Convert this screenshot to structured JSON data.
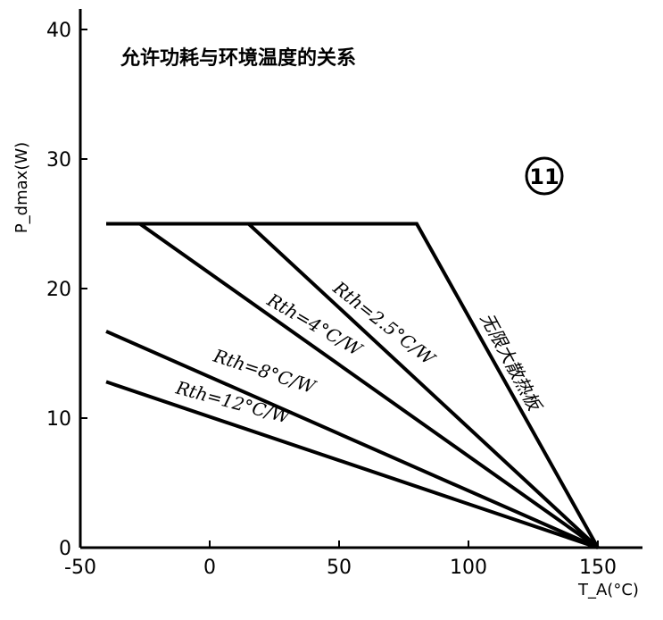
{
  "chart_data": {
    "type": "line",
    "title": "允许功耗与环境温度的关系",
    "badge": "11",
    "xlabel": "T_A(°C)",
    "ylabel": "P_dmax(W)",
    "xlim": [
      -50,
      165
    ],
    "ylim": [
      0,
      42
    ],
    "x_ticks": [
      {
        "value": -50,
        "label": "-50"
      },
      {
        "value": 0,
        "label": "0"
      },
      {
        "value": 50,
        "label": "50"
      },
      {
        "value": 100,
        "label": "100"
      },
      {
        "value": 150,
        "label": "150"
      }
    ],
    "y_ticks": [
      {
        "value": 0,
        "label": "0"
      },
      {
        "value": 10,
        "label": "10"
      },
      {
        "value": 20,
        "label": "20"
      },
      {
        "value": 30,
        "label": "30"
      },
      {
        "value": 40,
        "label": "40"
      }
    ],
    "grid": false,
    "series": [
      {
        "name": "无限大散热板",
        "x": [
          -40,
          80,
          150
        ],
        "y": [
          25,
          25,
          0
        ]
      },
      {
        "name": "Rth=2.5°C/W",
        "x": [
          15,
          150
        ],
        "y": [
          25,
          0
        ]
      },
      {
        "name": "Rth=4°C/W",
        "x": [
          -27,
          150
        ],
        "y": [
          25,
          0
        ]
      },
      {
        "name": "Rth=8°C/W",
        "x": [
          -40,
          150
        ],
        "y": [
          16.7,
          0
        ]
      },
      {
        "name": "Rth=12°C/W",
        "x": [
          -40,
          150
        ],
        "y": [
          12.8,
          0
        ]
      }
    ]
  }
}
